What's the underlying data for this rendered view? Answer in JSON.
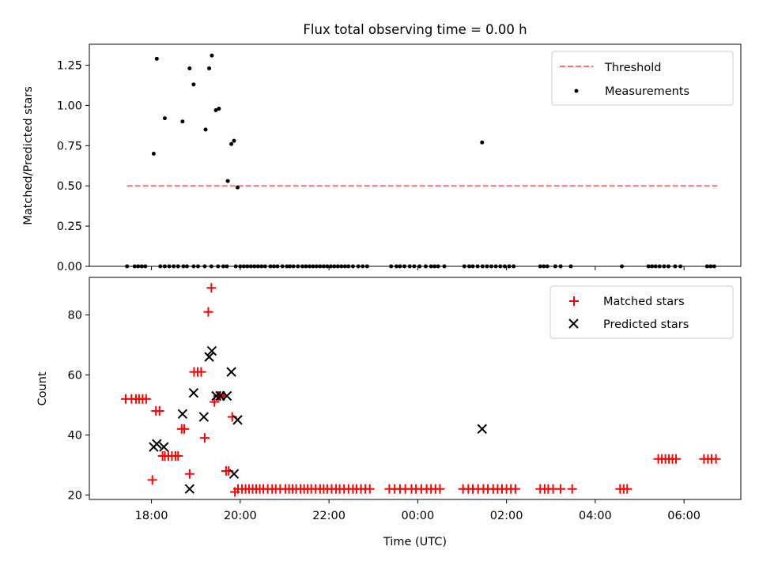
{
  "figure": {
    "title": "Flux total observing time = 0.00 h",
    "xlabel": "Time (UTC)"
  },
  "colors": {
    "threshold": "#ff7070",
    "measurements": "#000000",
    "matched": "#ff0000",
    "predicted": "#000000"
  },
  "chart_data": [
    {
      "type": "scatter",
      "panel": "top",
      "ylabel": "Matched/Predicted stars",
      "ylim": [
        0,
        1.38
      ],
      "xlim_hours": [
        16.6,
        31.28
      ],
      "yticks": [
        0,
        0.25,
        0.5,
        0.75,
        1.0,
        1.25
      ],
      "ytick_labels": [
        "0.00",
        "0.25",
        "0.50",
        "0.75",
        "1.00",
        "1.25"
      ],
      "legend_placement": "top-right",
      "threshold": {
        "name": "Threshold",
        "value": 0.5,
        "x_range_hours": [
          17.45,
          30.75
        ],
        "style": "dashed"
      },
      "series": [
        {
          "name": "Measurements",
          "x_hours": [
            18.05,
            18.12,
            18.3,
            18.7,
            18.86,
            18.95,
            19.22,
            19.3,
            19.36,
            19.45,
            19.52,
            19.72,
            19.8,
            19.86,
            19.94,
            25.45,
            17.45,
            17.62,
            17.7,
            17.78,
            17.86,
            18.2,
            18.3,
            18.4,
            18.5,
            18.6,
            18.72,
            18.8,
            18.95,
            19.05,
            19.2,
            19.35,
            19.5,
            19.62,
            19.7,
            19.9,
            20.0,
            20.08,
            20.16,
            20.24,
            20.32,
            20.4,
            20.48,
            20.56,
            20.68,
            20.76,
            20.84,
            20.95,
            21.05,
            21.12,
            21.2,
            21.3,
            21.4,
            21.48,
            21.56,
            21.64,
            21.72,
            21.8,
            21.88,
            21.96,
            22.04,
            22.12,
            22.2,
            22.28,
            22.36,
            22.44,
            22.54,
            22.66,
            22.76,
            22.86,
            23.4,
            23.52,
            23.6,
            23.7,
            23.82,
            23.92,
            24.04,
            24.18,
            24.3,
            24.38,
            24.46,
            24.6,
            25.05,
            25.16,
            25.24,
            25.35,
            25.46,
            25.56,
            25.66,
            25.76,
            25.86,
            25.96,
            26.06,
            26.16,
            26.76,
            26.84,
            26.92,
            27.1,
            27.22,
            27.45,
            28.6,
            29.2,
            29.28,
            29.36,
            29.45,
            29.55,
            29.65,
            29.8,
            29.92,
            30.52,
            30.6,
            30.68
          ],
          "y": [
            0.7,
            1.29,
            0.92,
            0.9,
            1.23,
            1.13,
            0.85,
            1.23,
            1.31,
            0.97,
            0.98,
            0.53,
            0.76,
            0.78,
            0.49,
            0.77,
            0,
            0,
            0,
            0,
            0,
            0,
            0,
            0,
            0,
            0,
            0,
            0,
            0,
            0,
            0,
            0,
            0,
            0,
            0,
            0,
            0,
            0,
            0,
            0,
            0,
            0,
            0,
            0,
            0,
            0,
            0,
            0,
            0,
            0,
            0,
            0,
            0,
            0,
            0,
            0,
            0,
            0,
            0,
            0,
            0,
            0,
            0,
            0,
            0,
            0,
            0,
            0,
            0,
            0,
            0,
            0,
            0,
            0,
            0,
            0,
            0,
            0,
            0,
            0,
            0,
            0,
            0,
            0,
            0,
            0,
            0,
            0,
            0,
            0,
            0,
            0,
            0,
            0,
            0,
            0,
            0,
            0,
            0,
            0,
            0,
            0,
            0,
            0,
            0,
            0,
            0,
            0,
            0,
            0,
            0,
            0
          ]
        }
      ]
    },
    {
      "type": "scatter",
      "panel": "bottom",
      "ylabel": "Count",
      "ylim": [
        18.5,
        92.5
      ],
      "xlim_hours": [
        16.6,
        31.28
      ],
      "yticks": [
        20,
        40,
        60,
        80
      ],
      "ytick_labels": [
        "20",
        "40",
        "60",
        "80"
      ],
      "xticks_hours": [
        18,
        20,
        22,
        24,
        26,
        28,
        30
      ],
      "xtick_labels": [
        "18:00",
        "20:00",
        "22:00",
        "00:00",
        "02:00",
        "04:00",
        "06:00"
      ],
      "legend_placement": "top-right",
      "series": [
        {
          "name": "Matched stars",
          "marker": "+",
          "x_hours": [
            17.42,
            17.55,
            17.65,
            17.72,
            17.8,
            17.88,
            18.02,
            18.1,
            18.18,
            18.25,
            18.3,
            18.38,
            18.46,
            18.54,
            18.6,
            18.68,
            18.74,
            18.86,
            18.96,
            19.04,
            19.12,
            19.2,
            19.28,
            19.35,
            19.42,
            19.5,
            19.55,
            19.62,
            19.68,
            19.74,
            19.82,
            19.88,
            19.95,
            20.04,
            20.12,
            20.2,
            20.28,
            20.36,
            20.44,
            20.52,
            20.62,
            20.72,
            20.8,
            20.9,
            21.02,
            21.1,
            21.18,
            21.26,
            21.36,
            21.44,
            21.52,
            21.6,
            21.7,
            21.8,
            21.88,
            21.96,
            22.06,
            22.16,
            22.24,
            22.34,
            22.44,
            22.54,
            22.62,
            22.72,
            22.82,
            22.92,
            23.36,
            23.48,
            23.6,
            23.72,
            23.86,
            23.96,
            24.08,
            24.2,
            24.3,
            24.4,
            24.5,
            25.02,
            25.14,
            25.24,
            25.36,
            25.48,
            25.58,
            25.7,
            25.8,
            25.9,
            26.0,
            26.1,
            26.2,
            26.76,
            26.86,
            26.94,
            27.05,
            27.22,
            27.48,
            28.56,
            28.64,
            28.72,
            29.42,
            29.5,
            29.58,
            29.66,
            29.74,
            29.82,
            30.45,
            30.54,
            30.62,
            30.72
          ],
          "y": [
            52,
            52,
            52,
            52,
            52,
            52,
            25,
            48,
            48,
            33,
            33,
            33,
            33,
            33,
            33,
            42,
            42,
            27,
            61,
            61,
            61,
            39,
            81,
            89,
            51,
            53,
            53,
            53,
            28,
            28,
            46,
            21,
            22,
            22,
            22,
            22,
            22,
            22,
            22,
            22,
            22,
            22,
            22,
            22,
            22,
            22,
            22,
            22,
            22,
            22,
            22,
            22,
            22,
            22,
            22,
            22,
            22,
            22,
            22,
            22,
            22,
            22,
            22,
            22,
            22,
            22,
            22,
            22,
            22,
            22,
            22,
            22,
            22,
            22,
            22,
            22,
            22,
            22,
            22,
            22,
            22,
            22,
            22,
            22,
            22,
            22,
            22,
            22,
            22,
            22,
            22,
            22,
            22,
            22,
            22,
            22,
            22,
            22,
            32,
            32,
            32,
            32,
            32,
            32,
            32,
            32,
            32,
            32
          ]
        },
        {
          "name": "Predicted stars",
          "marker": "x",
          "x_hours": [
            18.05,
            18.12,
            18.28,
            18.7,
            18.86,
            18.95,
            19.18,
            19.3,
            19.36,
            19.46,
            19.55,
            19.7,
            19.8,
            19.86,
            19.94,
            25.45
          ],
          "y": [
            36,
            37,
            36,
            47,
            22,
            54,
            46,
            66,
            68,
            53,
            53,
            53,
            61,
            27,
            45,
            42
          ]
        }
      ]
    }
  ]
}
